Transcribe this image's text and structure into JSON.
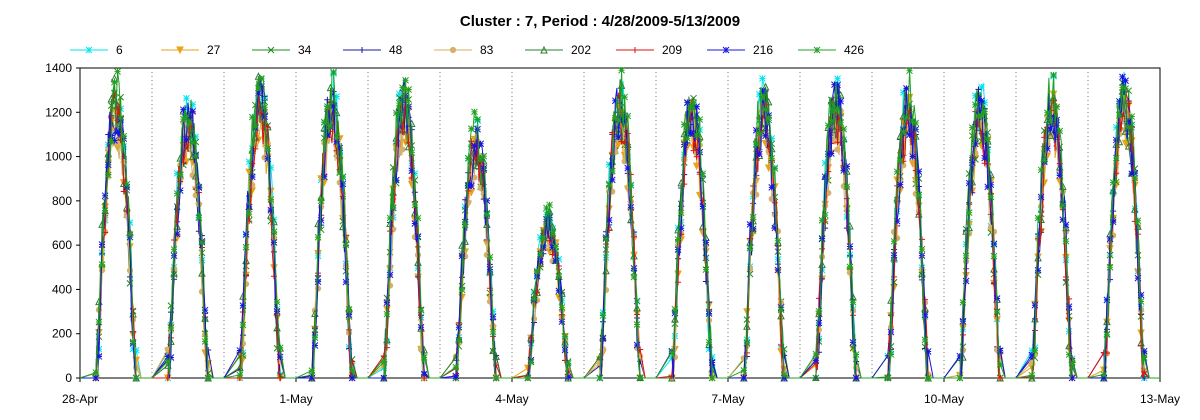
{
  "chart_data": {
    "type": "line",
    "title": "Cluster : 7, Period : 4/28/2009-5/13/2009",
    "xlabel": "",
    "ylabel": "",
    "ylim": [
      0,
      1400
    ],
    "y_ticks": [
      0,
      200,
      400,
      600,
      800,
      1000,
      1200,
      1400
    ],
    "x_tick_labels": [
      "28-Apr",
      "1-May",
      "4-May",
      "7-May",
      "10-May",
      "13-May"
    ],
    "x_range_days": [
      0,
      15
    ],
    "x_tick_days": [
      0,
      3,
      6,
      9,
      12,
      15
    ],
    "grid": "vertical dotted lines at each day",
    "legend_placement": "top",
    "series": [
      {
        "name": "6",
        "color": "#00e5ee",
        "marker": "asterisk",
        "peak_scale": 1.0
      },
      {
        "name": "27",
        "color": "#e8a317",
        "marker": "triangle-down",
        "peak_scale": 0.93
      },
      {
        "name": "34",
        "color": "#1a8c1a",
        "marker": "x",
        "peak_scale": 0.97
      },
      {
        "name": "48",
        "color": "#1a1aa0",
        "marker": "plus",
        "peak_scale": 0.96
      },
      {
        "name": "83",
        "color": "#d4b06a",
        "marker": "circle",
        "peak_scale": 0.92
      },
      {
        "name": "202",
        "color": "#2e7d32",
        "marker": "triangle",
        "peak_scale": 0.98
      },
      {
        "name": "209",
        "color": "#e01010",
        "marker": "plus",
        "peak_scale": 0.95
      },
      {
        "name": "216",
        "color": "#1515e0",
        "marker": "asterisk",
        "peak_scale": 0.97
      },
      {
        "name": "426",
        "color": "#20a020",
        "marker": "asterisk",
        "peak_scale": 1.02
      }
    ],
    "daily_peaks": [
      {
        "day": "28-Apr",
        "peak": 1250
      },
      {
        "day": "29-Apr",
        "peak": 1200
      },
      {
        "day": "30-Apr",
        "peak": 1280
      },
      {
        "day": "1-May",
        "peak": 1250
      },
      {
        "day": "2-May",
        "peak": 1270
      },
      {
        "day": "3-May",
        "peak": 1080
      },
      {
        "day": "4-May",
        "peak": 700
      },
      {
        "day": "5-May",
        "peak": 1250
      },
      {
        "day": "6-May",
        "peak": 1230
      },
      {
        "day": "7-May",
        "peak": 1240
      },
      {
        "day": "8-May",
        "peak": 1270
      },
      {
        "day": "9-May",
        "peak": 1240
      },
      {
        "day": "10-May",
        "peak": 1230
      },
      {
        "day": "11-May",
        "peak": 1250
      },
      {
        "day": "12-May",
        "peak": 1280
      }
    ]
  }
}
